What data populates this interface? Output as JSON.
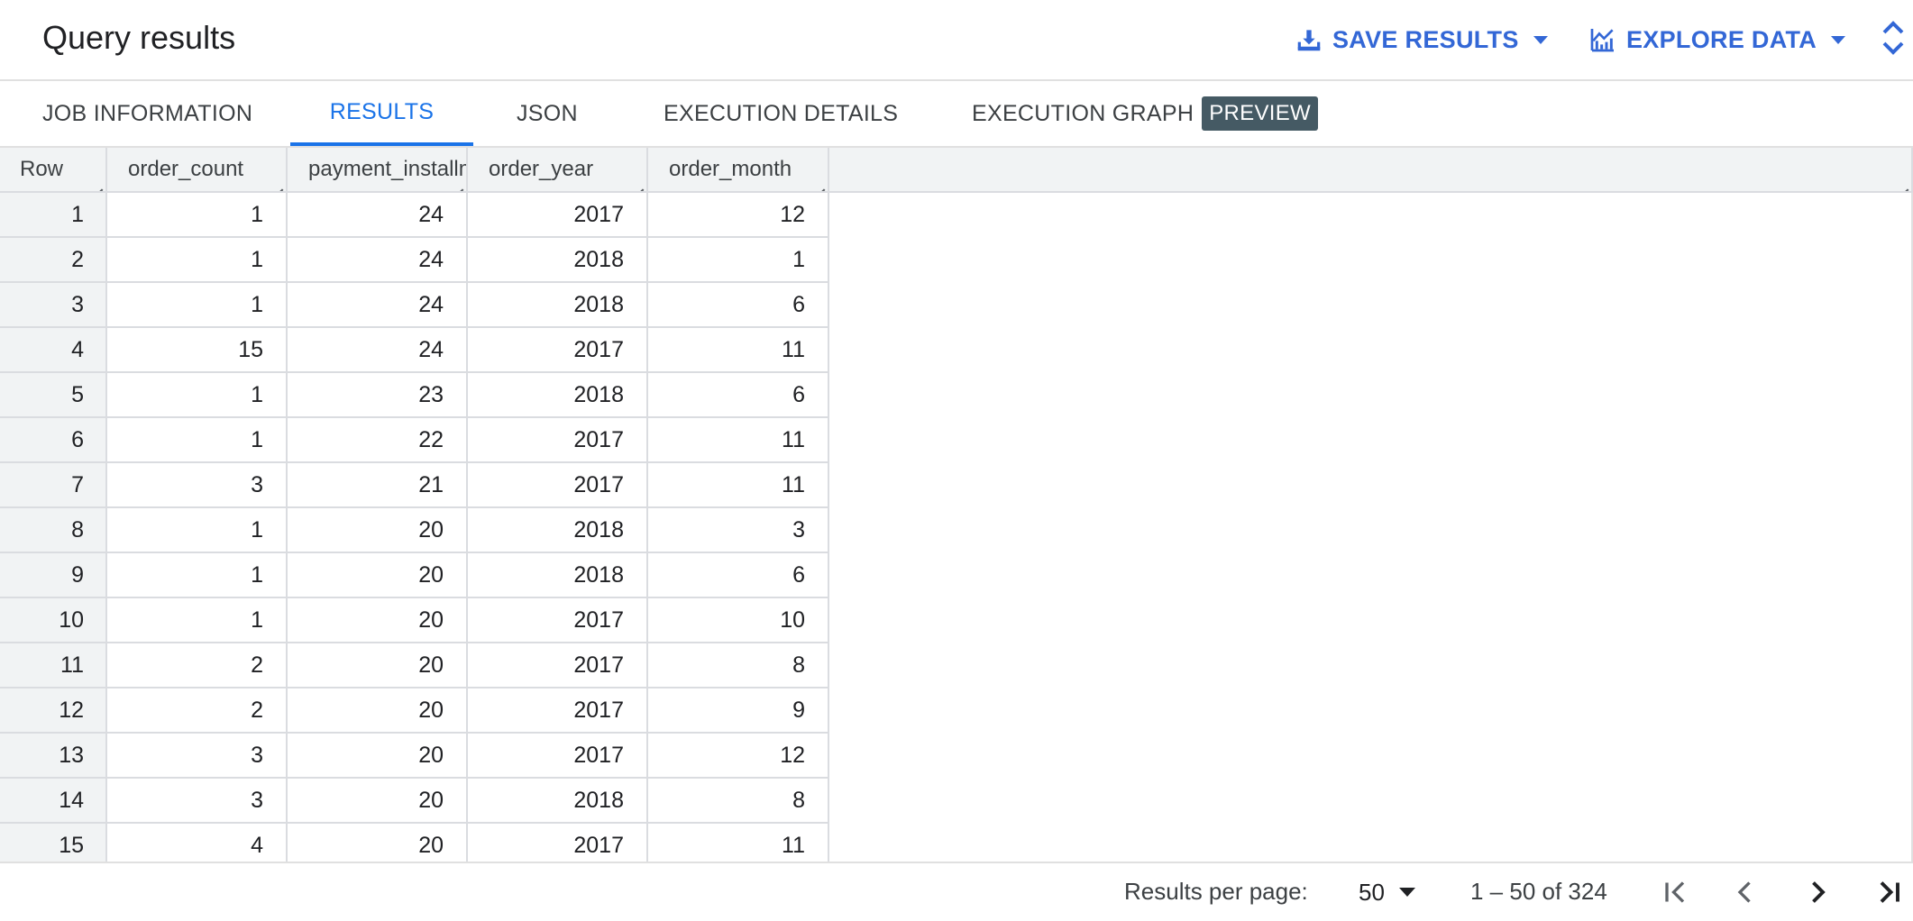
{
  "header": {
    "title": "Query results",
    "save_label": "SAVE RESULTS",
    "explore_label": "EXPLORE DATA",
    "save_icon": "download-icon",
    "explore_icon": "chart-icon",
    "expand_icon": "unfold-icon"
  },
  "tabs": {
    "job": "JOB INFORMATION",
    "results": "RESULTS",
    "json": "JSON",
    "exec_details": "EXECUTION DETAILS",
    "exec_graph": "EXECUTION GRAPH",
    "preview_badge": "PREVIEW",
    "active": "RESULTS"
  },
  "table": {
    "columns": [
      "Row",
      "order_count",
      "payment_installments",
      "order_year",
      "order_month"
    ],
    "rows": [
      [
        "1",
        "1",
        "24",
        "2017",
        "12"
      ],
      [
        "2",
        "1",
        "24",
        "2018",
        "1"
      ],
      [
        "3",
        "1",
        "24",
        "2018",
        "6"
      ],
      [
        "4",
        "15",
        "24",
        "2017",
        "11"
      ],
      [
        "5",
        "1",
        "23",
        "2018",
        "6"
      ],
      [
        "6",
        "1",
        "22",
        "2017",
        "11"
      ],
      [
        "7",
        "3",
        "21",
        "2017",
        "11"
      ],
      [
        "8",
        "1",
        "20",
        "2018",
        "3"
      ],
      [
        "9",
        "1",
        "20",
        "2018",
        "6"
      ],
      [
        "10",
        "1",
        "20",
        "2017",
        "10"
      ],
      [
        "11",
        "2",
        "20",
        "2017",
        "8"
      ],
      [
        "12",
        "2",
        "20",
        "2017",
        "9"
      ],
      [
        "13",
        "3",
        "20",
        "2017",
        "12"
      ],
      [
        "14",
        "3",
        "20",
        "2018",
        "8"
      ],
      [
        "15",
        "4",
        "20",
        "2017",
        "11"
      ]
    ]
  },
  "footer": {
    "rpp_label": "Results per page:",
    "rpp_value": "50",
    "range": "1 – 50 of 324",
    "first_icon": "first-page-icon",
    "prev_icon": "chevron-left-icon",
    "next_icon": "chevron-right-icon",
    "last_icon": "last-page-icon"
  },
  "colors": {
    "accent": "#1a73e8",
    "action": "#3367d6",
    "badge_bg": "#455a64",
    "header_bg": "#f1f3f4"
  }
}
